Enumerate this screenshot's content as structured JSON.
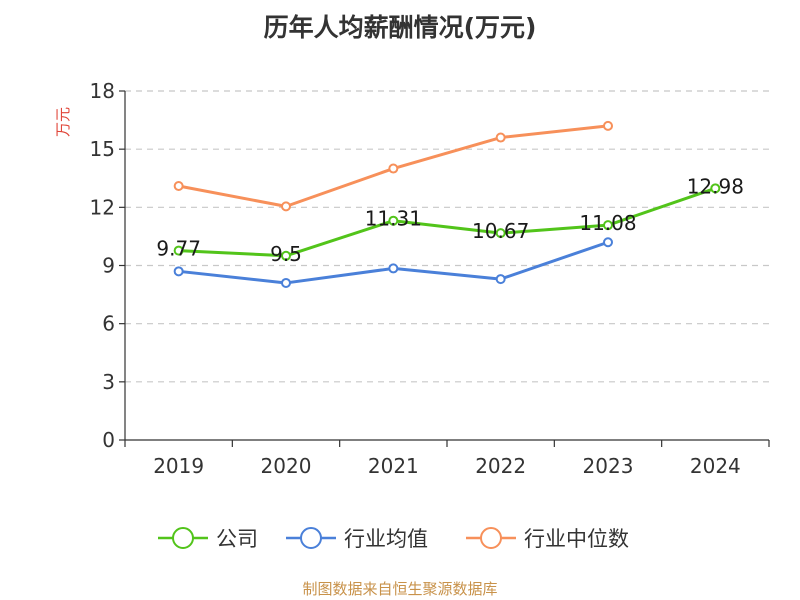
{
  "chart_data": {
    "type": "line",
    "title": "历年人均薪酬情况(万元)",
    "ylabel": "万元",
    "xlabel": "",
    "categories": [
      "2019",
      "2020",
      "2021",
      "2022",
      "2023",
      "2024"
    ],
    "ylim": [
      0,
      18
    ],
    "yticks": [
      "0",
      "3",
      "6",
      "9",
      "12",
      "15",
      "18"
    ],
    "grid": true,
    "legend_position": "bottom",
    "series": [
      {
        "name": "公司",
        "color": "#52c41a",
        "values": [
          9.77,
          9.5,
          11.31,
          10.67,
          11.08,
          12.98
        ],
        "labels": [
          "9.77",
          "9.5",
          "11.31",
          "10.67",
          "11.08",
          "12.98"
        ]
      },
      {
        "name": "行业均值",
        "color": "#4a80d9",
        "values": [
          8.7,
          8.1,
          8.85,
          8.3,
          10.2,
          null
        ]
      },
      {
        "name": "行业中位数",
        "color": "#f7905a",
        "values": [
          13.1,
          12.05,
          14.0,
          15.6,
          16.2,
          null
        ]
      }
    ]
  },
  "source_note": "制图数据来自恒生聚源数据库"
}
